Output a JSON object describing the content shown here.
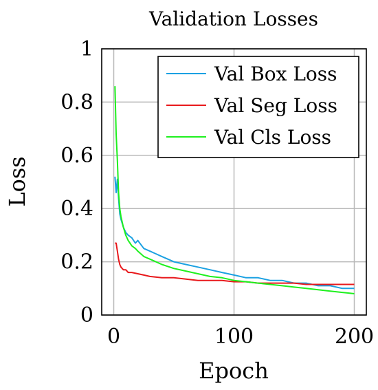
{
  "chart_data": {
    "type": "line",
    "title": "Validation Losses",
    "xlabel": "Epoch",
    "ylabel": "Loss",
    "xlim": [
      -10,
      210
    ],
    "ylim": [
      0,
      1
    ],
    "xticks": [
      0,
      100,
      200
    ],
    "xtick_labels": [
      "0",
      "100",
      "200"
    ],
    "yticks": [
      0,
      0.2,
      0.4,
      0.6,
      0.8,
      1
    ],
    "ytick_labels": [
      "0",
      "0.2",
      "0.4",
      "0.6",
      "0.8",
      "1"
    ],
    "grid": true,
    "legend_position": "top-right",
    "series": [
      {
        "name": "Val Box Loss",
        "color": "#1ba1e2",
        "x": [
          1,
          2,
          3,
          4,
          5,
          6,
          8,
          10,
          12,
          15,
          18,
          20,
          25,
          30,
          35,
          40,
          50,
          60,
          70,
          80,
          90,
          100,
          110,
          120,
          130,
          140,
          150,
          160,
          170,
          180,
          190,
          200
        ],
        "y": [
          0.52,
          0.46,
          0.51,
          0.44,
          0.38,
          0.36,
          0.33,
          0.31,
          0.3,
          0.29,
          0.27,
          0.28,
          0.25,
          0.24,
          0.23,
          0.22,
          0.2,
          0.19,
          0.18,
          0.17,
          0.16,
          0.15,
          0.14,
          0.14,
          0.13,
          0.13,
          0.12,
          0.12,
          0.11,
          0.11,
          0.1,
          0.1
        ]
      },
      {
        "name": "Val Seg Loss",
        "color": "#e8191c",
        "x": [
          1,
          2,
          3,
          4,
          5,
          6,
          8,
          10,
          12,
          15,
          20,
          25,
          30,
          40,
          50,
          60,
          70,
          80,
          90,
          100,
          110,
          120,
          130,
          140,
          150,
          160,
          170,
          180,
          190,
          200
        ],
        "y": [
          0.27,
          0.27,
          0.24,
          0.21,
          0.19,
          0.18,
          0.17,
          0.17,
          0.16,
          0.16,
          0.155,
          0.15,
          0.145,
          0.14,
          0.14,
          0.135,
          0.13,
          0.13,
          0.13,
          0.125,
          0.125,
          0.12,
          0.12,
          0.12,
          0.12,
          0.115,
          0.115,
          0.115,
          0.115,
          0.115
        ]
      },
      {
        "name": "Val Cls Loss",
        "color": "#1ef01e",
        "x": [
          1,
          2,
          3,
          4,
          5,
          6,
          8,
          10,
          12,
          15,
          18,
          20,
          25,
          30,
          35,
          40,
          50,
          60,
          70,
          80,
          90,
          100,
          110,
          120,
          130,
          140,
          150,
          160,
          170,
          180,
          190,
          200
        ],
        "y": [
          0.86,
          0.68,
          0.58,
          0.46,
          0.4,
          0.37,
          0.33,
          0.3,
          0.28,
          0.26,
          0.25,
          0.24,
          0.22,
          0.21,
          0.2,
          0.19,
          0.175,
          0.165,
          0.155,
          0.145,
          0.14,
          0.13,
          0.125,
          0.12,
          0.115,
          0.11,
          0.105,
          0.1,
          0.095,
          0.09,
          0.085,
          0.08
        ]
      }
    ]
  }
}
